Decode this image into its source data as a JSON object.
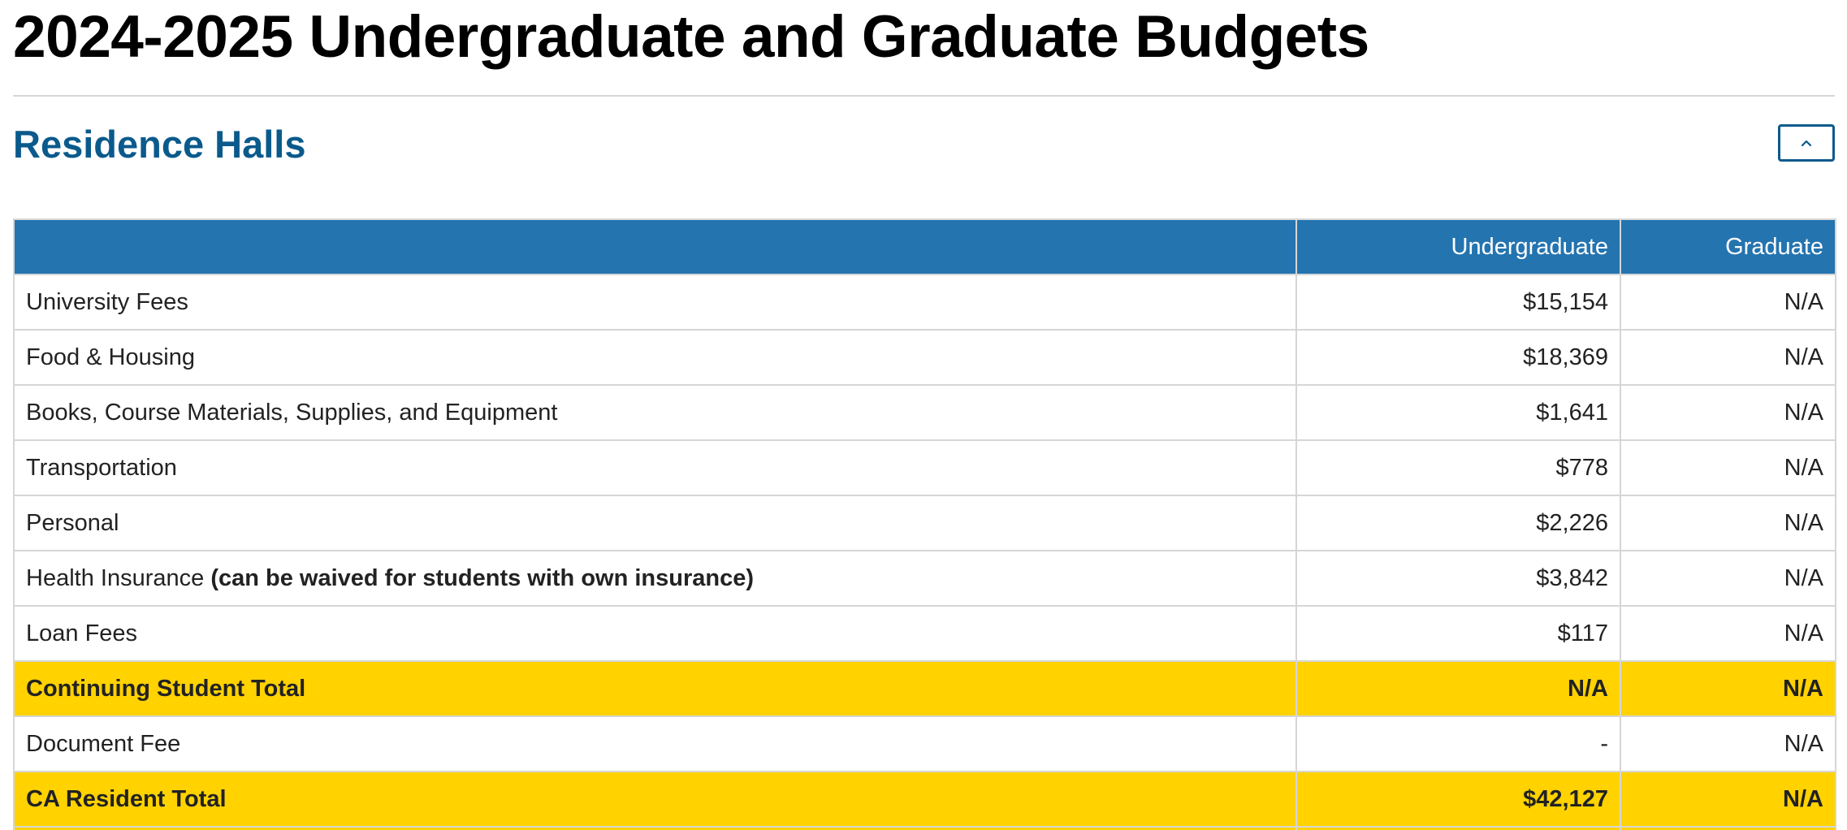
{
  "page": {
    "title": "2024-2025 Undergraduate and Graduate Budgets"
  },
  "section": {
    "title": "Residence Halls",
    "collapse_icon": "chevron-up-icon"
  },
  "colors": {
    "header_blue": "#2474b0",
    "section_title_blue": "#0a5a8c",
    "total_row_gold": "#ffd200"
  },
  "table": {
    "headers": {
      "item": "",
      "undergraduate": "Undergraduate",
      "graduate": "Graduate"
    },
    "rows": [
      {
        "label": "University Fees",
        "note": "",
        "undergraduate": "$15,154",
        "graduate": "N/A"
      },
      {
        "label": "Food & Housing",
        "note": "",
        "undergraduate": "$18,369",
        "graduate": "N/A"
      },
      {
        "label": "Books, Course Materials, Supplies, and Equipment",
        "note": "",
        "undergraduate": "$1,641",
        "graduate": "N/A"
      },
      {
        "label": "Transportation",
        "note": "",
        "undergraduate": "$778",
        "graduate": "N/A"
      },
      {
        "label": "Personal",
        "note": "",
        "undergraduate": "$2,226",
        "graduate": "N/A"
      },
      {
        "label": "Health Insurance",
        "note": "(can be waived for students with own insurance)",
        "undergraduate": "$3,842",
        "graduate": "N/A"
      },
      {
        "label": "Loan Fees",
        "note": "",
        "undergraduate": "$117",
        "graduate": "N/A"
      },
      {
        "label": "Continuing Student Total",
        "note": "",
        "undergraduate": "N/A",
        "graduate": "N/A",
        "total": true
      },
      {
        "label": "Document Fee",
        "note": "",
        "undergraduate": "-",
        "graduate": "N/A"
      },
      {
        "label": "CA Resident Total",
        "note": "",
        "undergraduate": "$42,127",
        "graduate": "N/A",
        "total": true
      }
    ]
  }
}
